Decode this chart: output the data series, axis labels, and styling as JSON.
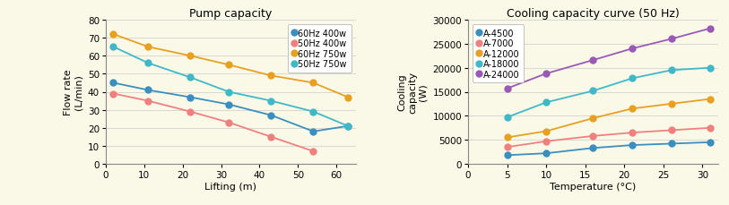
{
  "pump": {
    "title": "Pump capacity",
    "xlabel": "Lifting (m)",
    "ylabel": "Flow rate\n(L/min)",
    "xlim": [
      0,
      65
    ],
    "ylim": [
      0,
      80
    ],
    "xticks": [
      0,
      10,
      20,
      30,
      40,
      50,
      60
    ],
    "yticks": [
      0,
      10,
      20,
      30,
      40,
      50,
      60,
      70,
      80
    ],
    "series": [
      {
        "label": "60Hz 400w",
        "color": "#3a8fbf",
        "x": [
          2,
          11,
          22,
          32,
          43,
          54,
          63
        ],
        "y": [
          45,
          41,
          37,
          33,
          27,
          18,
          21
        ]
      },
      {
        "label": "50Hz 400w",
        "color": "#f08080",
        "x": [
          2,
          11,
          22,
          32,
          43,
          54
        ],
        "y": [
          39,
          35,
          29,
          23,
          15,
          7
        ]
      },
      {
        "label": "60Hz 750w",
        "color": "#e8a020",
        "x": [
          2,
          11,
          22,
          32,
          43,
          54,
          63
        ],
        "y": [
          72,
          65,
          60,
          55,
          49,
          45,
          37
        ]
      },
      {
        "label": "50Hz 750w",
        "color": "#40b8c8",
        "x": [
          2,
          11,
          22,
          32,
          43,
          54,
          63
        ],
        "y": [
          65,
          56,
          48,
          40,
          35,
          29,
          21
        ]
      }
    ]
  },
  "cooling": {
    "title": "Cooling capacity curve (50 Hz)",
    "xlabel": "Temperature (°C)",
    "ylabel": "Cooling\ncapacity\n(W)",
    "xlim": [
      0,
      32
    ],
    "ylim": [
      0,
      30000
    ],
    "xticks": [
      0,
      5,
      10,
      15,
      20,
      25,
      30
    ],
    "yticks": [
      0,
      5000,
      10000,
      15000,
      20000,
      25000,
      30000
    ],
    "series": [
      {
        "label": "A-4500",
        "color": "#3a8fbf",
        "x": [
          5,
          10,
          16,
          21,
          26,
          31
        ],
        "y": [
          1800,
          2200,
          3300,
          3900,
          4200,
          4500
        ]
      },
      {
        "label": "A-7000",
        "color": "#f08080",
        "x": [
          5,
          10,
          16,
          21,
          26,
          31
        ],
        "y": [
          3500,
          4700,
          5800,
          6500,
          7000,
          7500
        ]
      },
      {
        "label": "A-12000",
        "color": "#e8a020",
        "x": [
          5,
          10,
          16,
          21,
          26,
          31
        ],
        "y": [
          5500,
          6800,
          9500,
          11500,
          12500,
          13500
        ]
      },
      {
        "label": "A-18000",
        "color": "#40b8c8",
        "x": [
          5,
          10,
          16,
          21,
          26,
          31
        ],
        "y": [
          9700,
          12800,
          15200,
          17800,
          19500,
          20000
        ]
      },
      {
        "label": "A-24000",
        "color": "#9b59b6",
        "x": [
          5,
          10,
          16,
          21,
          26,
          31
        ],
        "y": [
          15700,
          18800,
          21600,
          24000,
          26000,
          28200
        ]
      }
    ]
  },
  "bg_color": "#faf9e8",
  "title_fontsize": 9,
  "label_fontsize": 8,
  "tick_fontsize": 7.5,
  "legend_fontsize": 7,
  "marker_size": 6,
  "line_width": 1.3
}
